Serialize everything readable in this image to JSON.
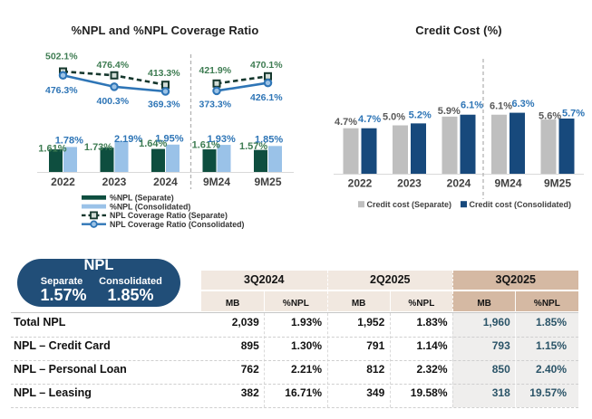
{
  "page": {
    "background": "#ffffff"
  },
  "chart_data": [
    {
      "type": "combo-bar-line",
      "title": "%NPL and %NPL Coverage Ratio",
      "categories": [
        "2022",
        "2023",
        "2024",
        "9M24",
        "9M25"
      ],
      "period_break_after": "2024",
      "grid": false,
      "bar_axis_range": [
        0,
        2.5
      ],
      "line_axis_range": [
        350,
        520
      ],
      "bar_series": [
        {
          "name": "%NPL (Separate)",
          "values": [
            1.61,
            1.73,
            1.64,
            1.61,
            1.57
          ],
          "labels": [
            "1.61%",
            "1.73%",
            "1.64%",
            "1.61%",
            "1.57%"
          ],
          "color": "#0e4e3f",
          "label_color": "#3e7c52"
        },
        {
          "name": "%NPL (Consolidated)",
          "values": [
            1.78,
            2.19,
            1.95,
            1.93,
            1.85
          ],
          "labels": [
            "1.78%",
            "2.19%",
            "1.95%",
            "1.93%",
            "1.85%"
          ],
          "color": "#9ac2e8",
          "label_color": "#2e75b6"
        }
      ],
      "line_series": [
        {
          "name": "NPL Coverage Ratio (Separate)",
          "values": [
            502.1,
            476.4,
            413.3,
            421.9,
            470.1
          ],
          "labels": [
            "502.1%",
            "476.4%",
            "413.3%",
            "421.9%",
            "470.1%"
          ],
          "color": "#16382e",
          "dashed": true,
          "marker": "square",
          "marker_fill": "#d2dcd6",
          "label_color": "#3e7c52"
        },
        {
          "name": "NPL Coverage Ratio (Consolidated)",
          "values": [
            476.3,
            400.3,
            369.3,
            373.3,
            426.1
          ],
          "labels": [
            "476.3%",
            "400.3%",
            "369.3%",
            "373.3%",
            "426.1%"
          ],
          "color": "#2e75b6",
          "dashed": false,
          "marker": "circle",
          "marker_fill": "#9dc3e6",
          "label_color": "#2e75b6"
        }
      ],
      "legend_position": "bottom-left"
    },
    {
      "type": "bar",
      "title": "Credit Cost (%)",
      "categories": [
        "2022",
        "2023",
        "2024",
        "9M24",
        "9M25"
      ],
      "period_break_after": "2024",
      "grid": false,
      "ylim": [
        0,
        7
      ],
      "series": [
        {
          "name": "Credit cost (Separate)",
          "values": [
            4.7,
            5.0,
            5.9,
            6.1,
            5.6
          ],
          "labels": [
            "4.7%",
            "5.0%",
            "5.9%",
            "6.1%",
            "5.6%"
          ],
          "color": "#bfbfbf",
          "label_color": "#595959"
        },
        {
          "name": "Credit cost (Consolidated)",
          "values": [
            4.7,
            5.2,
            6.1,
            6.3,
            5.7
          ],
          "labels": [
            "4.7%",
            "5.2%",
            "6.1%",
            "6.3%",
            "5.7%"
          ],
          "color": "#17497c",
          "label_color": "#2e75b6"
        }
      ],
      "legend_position": "bottom"
    },
    {
      "type": "table",
      "column_groups": [
        {
          "label": "3Q2024",
          "columns": [
            "MB",
            "%NPL"
          ],
          "highlight": false
        },
        {
          "label": "2Q2025",
          "columns": [
            "MB",
            "%NPL"
          ],
          "highlight": false
        },
        {
          "label": "3Q2025",
          "columns": [
            "MB",
            "%NPL"
          ],
          "highlight": true
        }
      ],
      "rows": [
        {
          "label": "Total NPL",
          "values": [
            "2,039",
            "1.93%",
            "1,952",
            "1.83%",
            "1,960",
            "1.85%"
          ]
        },
        {
          "label": "NPL – Credit Card",
          "values": [
            "895",
            "1.30%",
            "791",
            "1.14%",
            "793",
            "1.15%"
          ]
        },
        {
          "label": "NPL – Personal Loan",
          "values": [
            "762",
            "2.21%",
            "812",
            "2.32%",
            "850",
            "2.40%"
          ]
        },
        {
          "label": "NPL – Leasing",
          "values": [
            "382",
            "16.71%",
            "349",
            "19.58%",
            "318",
            "19.57%"
          ]
        }
      ],
      "style": {
        "header_bg": "#f1e8e0",
        "header_highlight_bg": "#d5b9a3",
        "highlight_col_bg": "#efeeed",
        "highlight_value_color": "#2b5468",
        "text_color": "#111111"
      }
    }
  ],
  "npl_badge": {
    "title": "NPL",
    "items": [
      {
        "label": "Separate",
        "value": "1.57%"
      },
      {
        "label": "Consolidated",
        "value": "1.85%"
      }
    ],
    "background": "#214e78",
    "text_color": "#ffffff"
  }
}
